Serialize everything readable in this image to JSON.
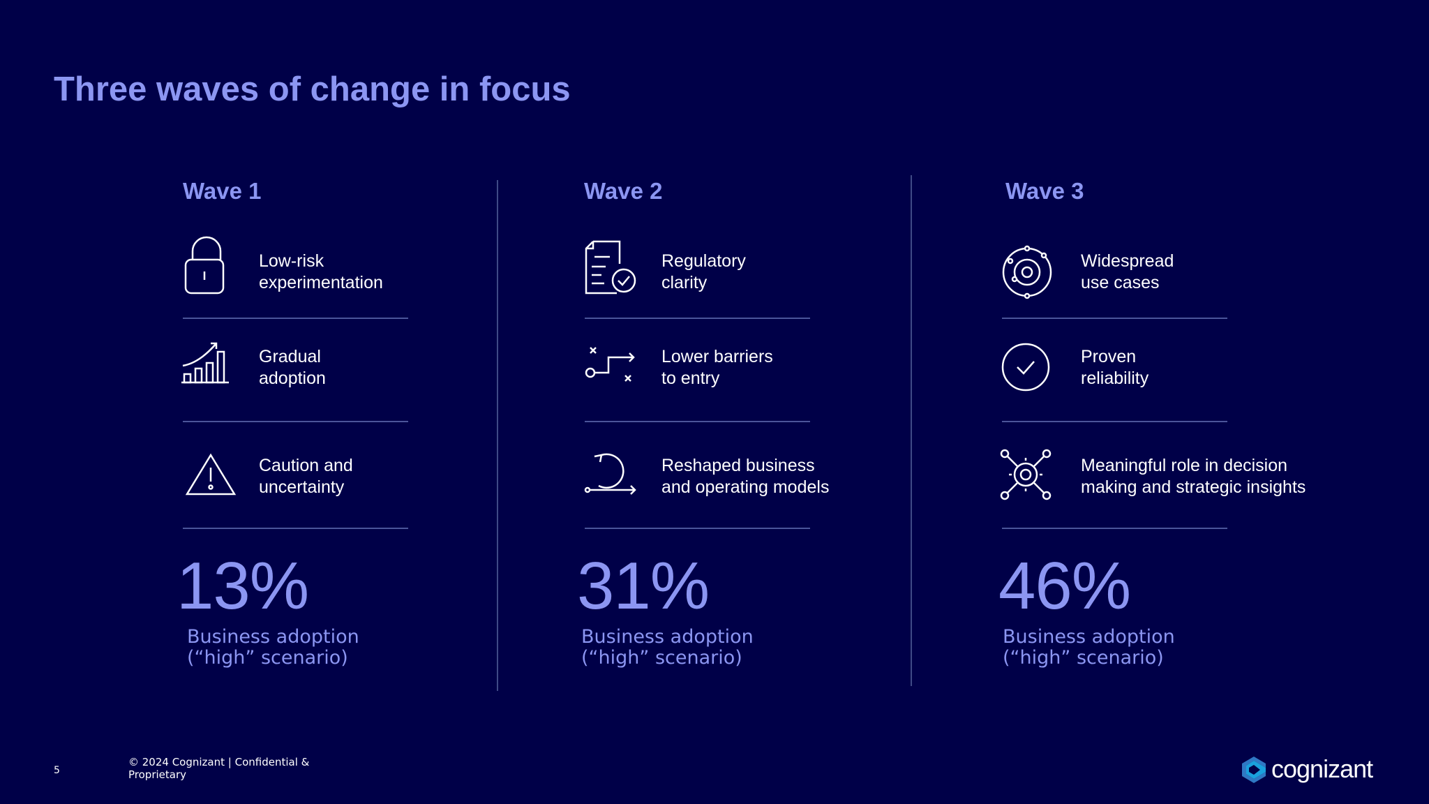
{
  "title": "Three waves of change in focus",
  "waves": [
    {
      "label": "Wave 1",
      "items": [
        {
          "icon": "padlock-icon",
          "text": "Low-risk\nexperimentation"
        },
        {
          "icon": "growth-chart-icon",
          "text": "Gradual\nadoption"
        },
        {
          "icon": "warning-triangle-icon",
          "text": "Caution and\nuncertainty"
        }
      ],
      "percent": "13%",
      "percent_value": 13,
      "description": "Business adoption\n(“high” scenario)"
    },
    {
      "label": "Wave 2",
      "items": [
        {
          "icon": "document-check-icon",
          "text": "Regulatory\nclarity"
        },
        {
          "icon": "path-route-icon",
          "text": "Lower barriers\nto entry"
        },
        {
          "icon": "cycle-arrow-icon",
          "text": "Reshaped business\nand operating models"
        }
      ],
      "percent": "31%",
      "percent_value": 31,
      "description": "Business adoption\n(“high” scenario)"
    },
    {
      "label": "Wave 3",
      "items": [
        {
          "icon": "orbit-target-icon",
          "text": "Widespread\nuse cases"
        },
        {
          "icon": "check-circle-icon",
          "text": "Proven\nreliability"
        },
        {
          "icon": "network-gear-icon",
          "text": "Meaningful role in decision\nmaking and strategic insights"
        }
      ],
      "percent": "46%",
      "percent_value": 46,
      "description": "Business adoption\n(“high” scenario)"
    }
  ],
  "footer": {
    "page_number": "5",
    "copyright": "© 2024 Cognizant | Confidential & Proprietary",
    "logo_text": "cognizant"
  },
  "colors": {
    "background": "#000048",
    "accent": "#8c96f2",
    "text": "#ffffff",
    "rule": "#4b559a"
  }
}
